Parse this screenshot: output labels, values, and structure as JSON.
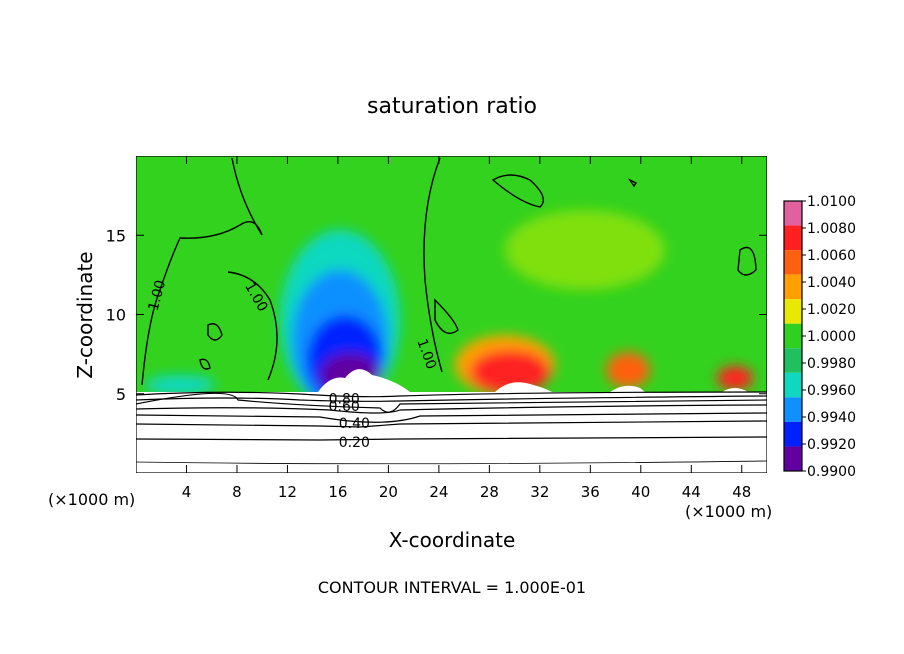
{
  "chart_data": {
    "type": "heatmap",
    "title": "saturation ratio",
    "xlabel": "X-coordinate",
    "ylabel": "Z-coordinate",
    "x_unit_left": "(×1000 m)",
    "x_unit_right": "(×1000 m)",
    "footer": "CONTOUR INTERVAL = 1.000E-01",
    "xlim": [
      0,
      50
    ],
    "ylim": [
      0,
      20
    ],
    "x_ticks": [
      4,
      8,
      12,
      16,
      20,
      24,
      28,
      32,
      36,
      40,
      44,
      48
    ],
    "y_ticks": [
      5,
      10,
      15
    ],
    "colorbar": {
      "levels": [
        "1.0100",
        "1.0080",
        "1.0060",
        "1.0040",
        "1.0020",
        "1.0000",
        "0.9980",
        "0.9960",
        "0.9940",
        "0.9920",
        "0.9900"
      ],
      "colors": [
        "#e060a0",
        "#ff2020",
        "#ff6010",
        "#ffa000",
        "#e8e800",
        "#30d020",
        "#20c060",
        "#10d8c0",
        "#1090ff",
        "#0020ff",
        "#6000a0"
      ]
    },
    "contour_labels": [
      {
        "text": "1.00",
        "x": 1.7,
        "y": 11.2,
        "angle": -75
      },
      {
        "text": "1.00",
        "x": 9.5,
        "y": 11.1,
        "angle": 60
      },
      {
        "text": "1.00",
        "x": 23.0,
        "y": 7.5,
        "angle": 70
      },
      {
        "text": "0.80",
        "x": 16.5,
        "y": 4.65,
        "angle": 0
      },
      {
        "text": "0.60",
        "x": 16.5,
        "y": 4.15,
        "angle": 0
      },
      {
        "text": "0.40",
        "x": 17.3,
        "y": 3.1,
        "angle": 0
      },
      {
        "text": "0.20",
        "x": 17.3,
        "y": 1.9,
        "angle": 0
      }
    ]
  }
}
